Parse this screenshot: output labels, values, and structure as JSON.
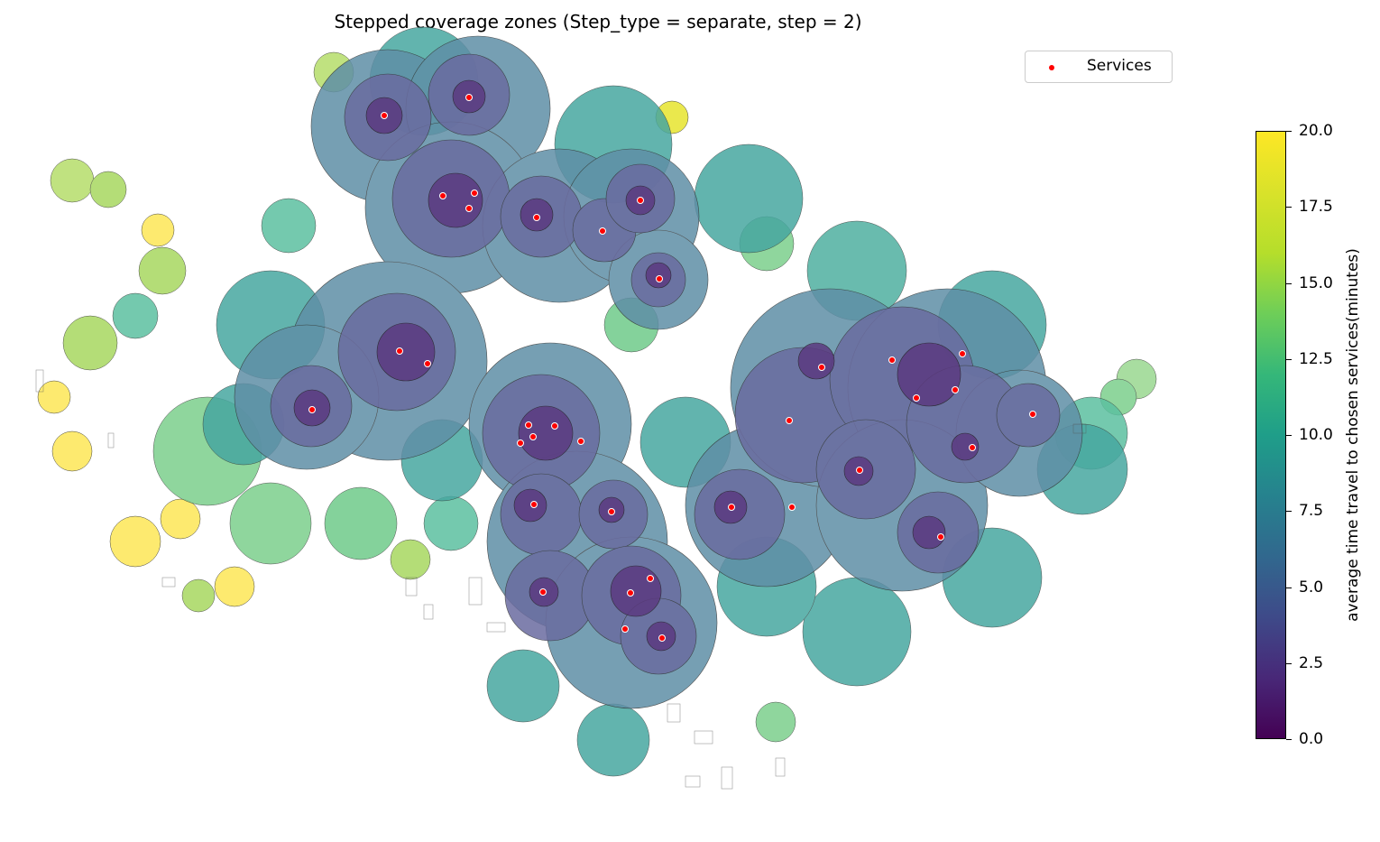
{
  "title": "Stepped coverage zones (Step_type = separate, step = 2)",
  "legend": {
    "entries": [
      {
        "label": "Services",
        "color": "#ff0000"
      }
    ]
  },
  "colorbar": {
    "label": "average time travel to chosen services(minutes)",
    "min": 0.0,
    "max": 20.0,
    "ticks": [
      "0.0",
      "2.5",
      "5.0",
      "7.5",
      "10.0",
      "12.5",
      "15.0",
      "17.5",
      "20.0"
    ],
    "colormap": "viridis"
  },
  "colors": {
    "zone_0_2": "#5b3a80",
    "zone_2_4": "#6a6ca0",
    "zone_4_6": "#5f8fa6",
    "zone_6_8": "#47a7a0",
    "zone_8_10": "#5cc0a0",
    "zone_10_12": "#7ccf8d",
    "zone_12_14": "#b6de6a",
    "zone_14_plus": "#fde860",
    "service_point": "#ff0000"
  }
}
